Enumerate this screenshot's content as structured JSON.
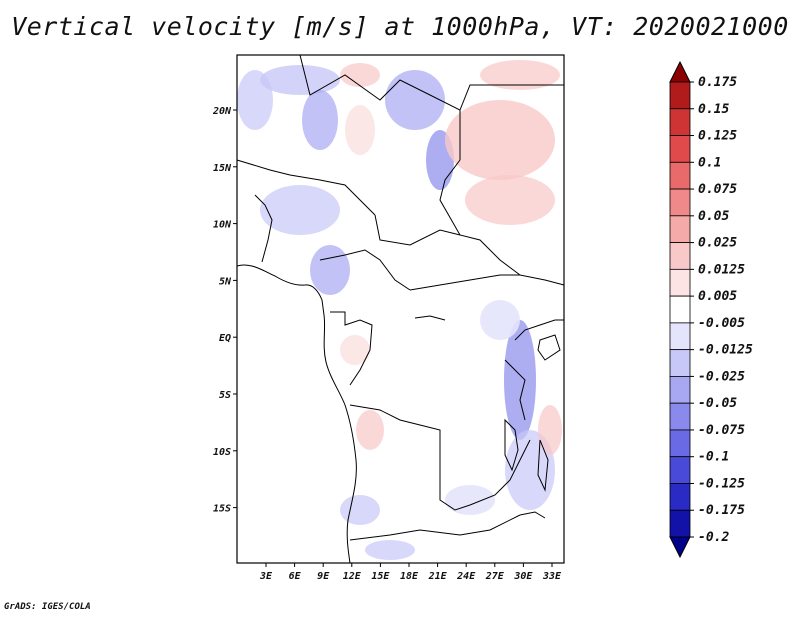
{
  "title": "Vertical velocity [m/s] at 1000hPa, VT: 2020021000",
  "footer": "GrADS: IGES/COLA",
  "map": {
    "lon_labels": [
      "3E",
      "6E",
      "9E",
      "12E",
      "15E",
      "18E",
      "21E",
      "24E",
      "27E",
      "30E",
      "33E"
    ],
    "lat_labels": [
      "20N",
      "15N",
      "10N",
      "5N",
      "EQ",
      "5S",
      "10S",
      "15S"
    ]
  },
  "colorbar": {
    "labels": [
      "0.175",
      "0.15",
      "0.125",
      "0.1",
      "0.075",
      "0.05",
      "0.025",
      "0.0125",
      "0.005",
      "-0.005",
      "-0.0125",
      "-0.025",
      "-0.05",
      "-0.075",
      "-0.1",
      "-0.125",
      "-0.175",
      "-0.2"
    ],
    "colors": [
      "#8b0000",
      "#b01c1c",
      "#cf3434",
      "#e04a4a",
      "#e86a6a",
      "#f08a8a",
      "#f5aaaa",
      "#f9c8c8",
      "#fce4e4",
      "#ffffff",
      "#e4e4fc",
      "#c8c8f8",
      "#a8a8f2",
      "#8a8aec",
      "#6a6ae4",
      "#4a4ad8",
      "#2a2ac4",
      "#1212a8",
      "#00008b"
    ]
  }
}
